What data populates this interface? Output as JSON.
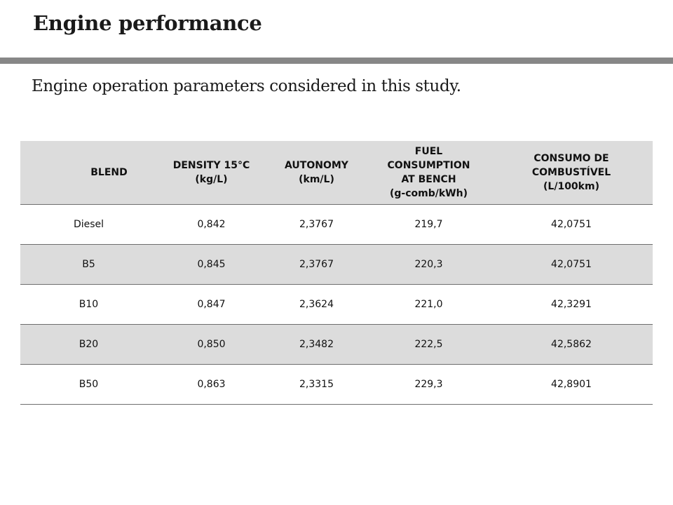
{
  "slide": {
    "title": "Engine performance",
    "subtitle": "Engine operation parameters considered in this study.",
    "rule_color": "#878787",
    "shade_color": "#dcdcdc"
  },
  "table": {
    "headers": [
      {
        "lines": [
          "BLEND"
        ]
      },
      {
        "lines": [
          "DENSITY 15°C",
          "(kg/L)"
        ]
      },
      {
        "lines": [
          "AUTONOMY",
          "(km/L)"
        ]
      },
      {
        "lines": [
          "FUEL",
          "CONSUMPTION",
          "AT BENCH",
          "(g-comb/kWh)"
        ]
      },
      {
        "lines": [
          "CONSUMO DE",
          "COMBUSTÍVEL",
          "(L/100km)"
        ]
      }
    ],
    "rows": [
      [
        "Diesel",
        "0,842",
        "2,3767",
        "219,7",
        "42,0751"
      ],
      [
        "B5",
        "0,845",
        "2,3767",
        "220,3",
        "42,0751"
      ],
      [
        "B10",
        "0,847",
        "2,3624",
        "221,0",
        "42,3291"
      ],
      [
        "B20",
        "0,850",
        "2,3482",
        "222,5",
        "42,5862"
      ],
      [
        "B50",
        "0,863",
        "2,3315",
        "229,3",
        "42,8901"
      ]
    ]
  }
}
